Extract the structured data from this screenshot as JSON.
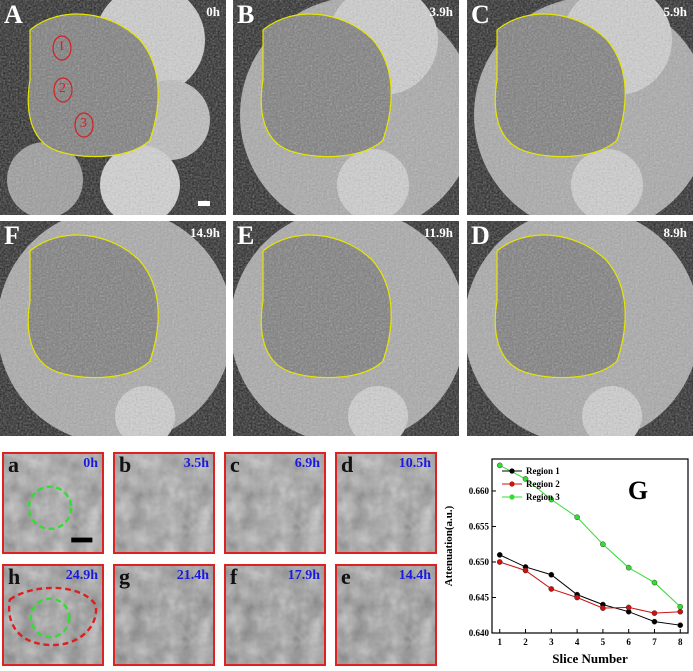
{
  "svg_patterns": true,
  "top_panels": [
    {
      "letter": "A",
      "time": "0h"
    },
    {
      "letter": "B",
      "time": "3.9h"
    },
    {
      "letter": "C",
      "time": "5.9h"
    },
    {
      "letter": "F",
      "time": "14.9h"
    },
    {
      "letter": "E",
      "time": "11.9h"
    },
    {
      "letter": "D",
      "time": "8.9h"
    }
  ],
  "region_markers": [
    "1",
    "2",
    "3"
  ],
  "small_panels": [
    {
      "letter": "a",
      "time": "0h"
    },
    {
      "letter": "b",
      "time": "3.5h"
    },
    {
      "letter": "c",
      "time": "6.9h"
    },
    {
      "letter": "d",
      "time": "10.5h"
    },
    {
      "letter": "h",
      "time": "24.9h"
    },
    {
      "letter": "g",
      "time": "21.4h"
    },
    {
      "letter": "f",
      "time": "17.9h"
    },
    {
      "letter": "e",
      "time": "14.4h"
    }
  ],
  "colors": {
    "outline": "#e6e600",
    "marker": "#d42020",
    "dashed_green": "#33dd33",
    "dashed_red": "#dd1f1f",
    "time_blue": "#1a1adf"
  },
  "chart_data": {
    "type": "line",
    "panel_letter": "G",
    "xlabel": "Slice Number",
    "ylabel": "Attenuation(a.u.)",
    "x": [
      1,
      2,
      3,
      4,
      5,
      6,
      7,
      8
    ],
    "xlim": [
      0.7,
      8.3
    ],
    "ylim": [
      0.64,
      0.6645
    ],
    "yticks": [
      0.64,
      0.645,
      0.65,
      0.655,
      0.66
    ],
    "ytick_labels": [
      "0.640",
      "0.645",
      "0.650",
      "0.655",
      "0.660"
    ],
    "xtick_labels": [
      "1",
      "2",
      "3",
      "4",
      "5",
      "6",
      "7",
      "8"
    ],
    "legend_position": "top-left",
    "series": [
      {
        "name": "Region 1",
        "color": "#000000",
        "values": [
          0.651,
          0.6493,
          0.6482,
          0.6454,
          0.644,
          0.643,
          0.6416,
          0.6411
        ]
      },
      {
        "name": "Region 2",
        "color": "#cc1111",
        "values": [
          0.65,
          0.6488,
          0.6462,
          0.645,
          0.6435,
          0.6436,
          0.6428,
          0.643
        ]
      },
      {
        "name": "Region 3",
        "color": "#33dd33",
        "values": [
          0.6636,
          0.6617,
          0.6588,
          0.6563,
          0.6525,
          0.6492,
          0.6471,
          0.6437
        ]
      }
    ]
  }
}
